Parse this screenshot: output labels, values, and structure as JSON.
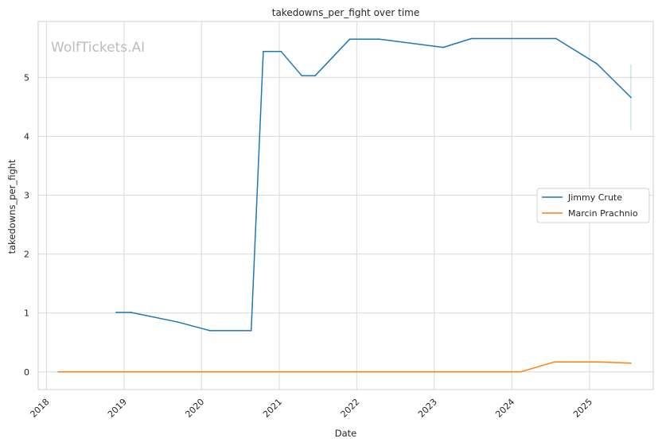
{
  "chart_data": {
    "type": "line",
    "title": "takedowns_per_fight over time",
    "xlabel": "Date",
    "ylabel": "takedowns_per_fight",
    "watermark": "WolfTickets.AI",
    "x_ticks": [
      "2018",
      "2019",
      "2020",
      "2021",
      "2022",
      "2023",
      "2024",
      "2025"
    ],
    "y_ticks": [
      "0",
      "1",
      "2",
      "3",
      "4",
      "5"
    ],
    "xlim": [
      "2017-11-23",
      "2025-10-28"
    ],
    "ylim": [
      -0.3,
      5.95
    ],
    "grid": true,
    "legend_position": "center-right",
    "series": [
      {
        "name": "Jimmy Crute",
        "color": "#1f77b4",
        "points": [
          {
            "x": "2018-11-25",
            "y": 1.01
          },
          {
            "x": "2019-02-03",
            "y": 1.01
          },
          {
            "x": "2019-09-07",
            "y": 0.85
          },
          {
            "x": "2020-02-10",
            "y": 0.7
          },
          {
            "x": "2020-08-22",
            "y": 0.7
          },
          {
            "x": "2020-10-18",
            "y": 5.44
          },
          {
            "x": "2021-01-10",
            "y": 5.44
          },
          {
            "x": "2021-04-17",
            "y": 5.03
          },
          {
            "x": "2021-06-19",
            "y": 5.03
          },
          {
            "x": "2021-11-29",
            "y": 5.65
          },
          {
            "x": "2022-04-17",
            "y": 5.65
          },
          {
            "x": "2023-02-12",
            "y": 5.51
          },
          {
            "x": "2023-06-25",
            "y": 5.66
          },
          {
            "x": "2024-07-27",
            "y": 5.66
          },
          {
            "x": "2025-02-05",
            "y": 5.23
          },
          {
            "x": "2025-07-15",
            "y": 4.66
          }
        ],
        "error_band": {
          "x": "2025-07-15",
          "low": 4.1,
          "high": 5.22
        }
      },
      {
        "name": "Marcin Prachnio",
        "color": "#ff7f0e",
        "points": [
          {
            "x": "2018-02-25",
            "y": 0.0
          },
          {
            "x": "2024-02-11",
            "y": 0.0
          },
          {
            "x": "2024-07-21",
            "y": 0.17
          },
          {
            "x": "2025-02-05",
            "y": 0.17
          },
          {
            "x": "2025-07-15",
            "y": 0.15
          }
        ]
      }
    ]
  }
}
